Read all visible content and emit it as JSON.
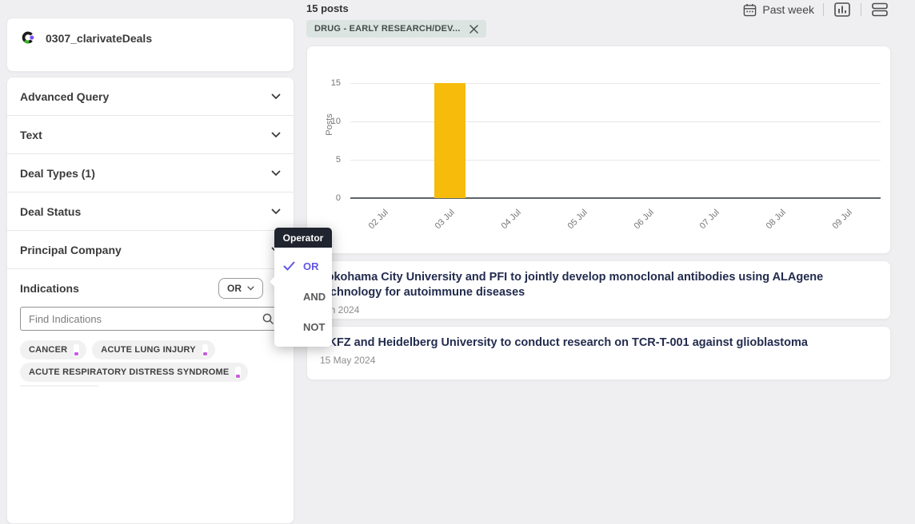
{
  "app": {
    "title": "0307_clarivateDeals"
  },
  "sidebar": {
    "sections": [
      {
        "label": "Advanced Query"
      },
      {
        "label": "Text"
      },
      {
        "label": "Deal Types (1)"
      },
      {
        "label": "Deal Status"
      },
      {
        "label": "Principal Company"
      }
    ],
    "indications": {
      "label": "Indications",
      "operator": "OR",
      "search_placeholder": "Find Indications",
      "chips": [
        {
          "label": "CANCER"
        },
        {
          "label": "ACUTE LUNG INJURY"
        },
        {
          "label": "ACUTE RESPIRATORY DISTRESS SYNDROME"
        }
      ]
    }
  },
  "operator_menu": {
    "title": "Operator",
    "options": [
      {
        "label": "OR",
        "selected": true
      },
      {
        "label": "AND",
        "selected": false
      },
      {
        "label": "NOT",
        "selected": false
      }
    ]
  },
  "main": {
    "results_count": "15 posts",
    "active_filter_chip": "DRUG - EARLY RESEARCH/DEV...",
    "toolbar": {
      "date_range": "Past week"
    },
    "posts": [
      {
        "title": "Yokohama City University and PFI to jointly develop monoclonal antibodies using ALAgene technology for autoimmune diseases",
        "date": "Jun 2024"
      },
      {
        "title": "DKFZ and Heidelberg University to conduct research on TCR-T-001 against glioblastoma",
        "date": "15 May 2024"
      }
    ]
  },
  "chart_data": {
    "type": "bar",
    "categories": [
      "02 Jul",
      "03 Jul",
      "04 Jul",
      "05 Jul",
      "06 Jul",
      "07 Jul",
      "08 Jul",
      "09 Jul"
    ],
    "values": [
      0,
      15,
      0,
      0,
      0,
      0,
      0,
      0
    ],
    "title": "",
    "xlabel": "",
    "ylabel": "Posts",
    "yticks": [
      0,
      5,
      10,
      15
    ],
    "ylim": [
      0,
      15
    ],
    "grid": true,
    "legend": "none",
    "bar_color": "#f6bb0b"
  },
  "colors": {
    "accent_purple": "#6156e3",
    "bar_yellow": "#f6bb0b",
    "active_chip_sage": "#dce4e1",
    "menu_header_dark": "#20242f",
    "chip_indicator_magenta": "#c95adf"
  }
}
